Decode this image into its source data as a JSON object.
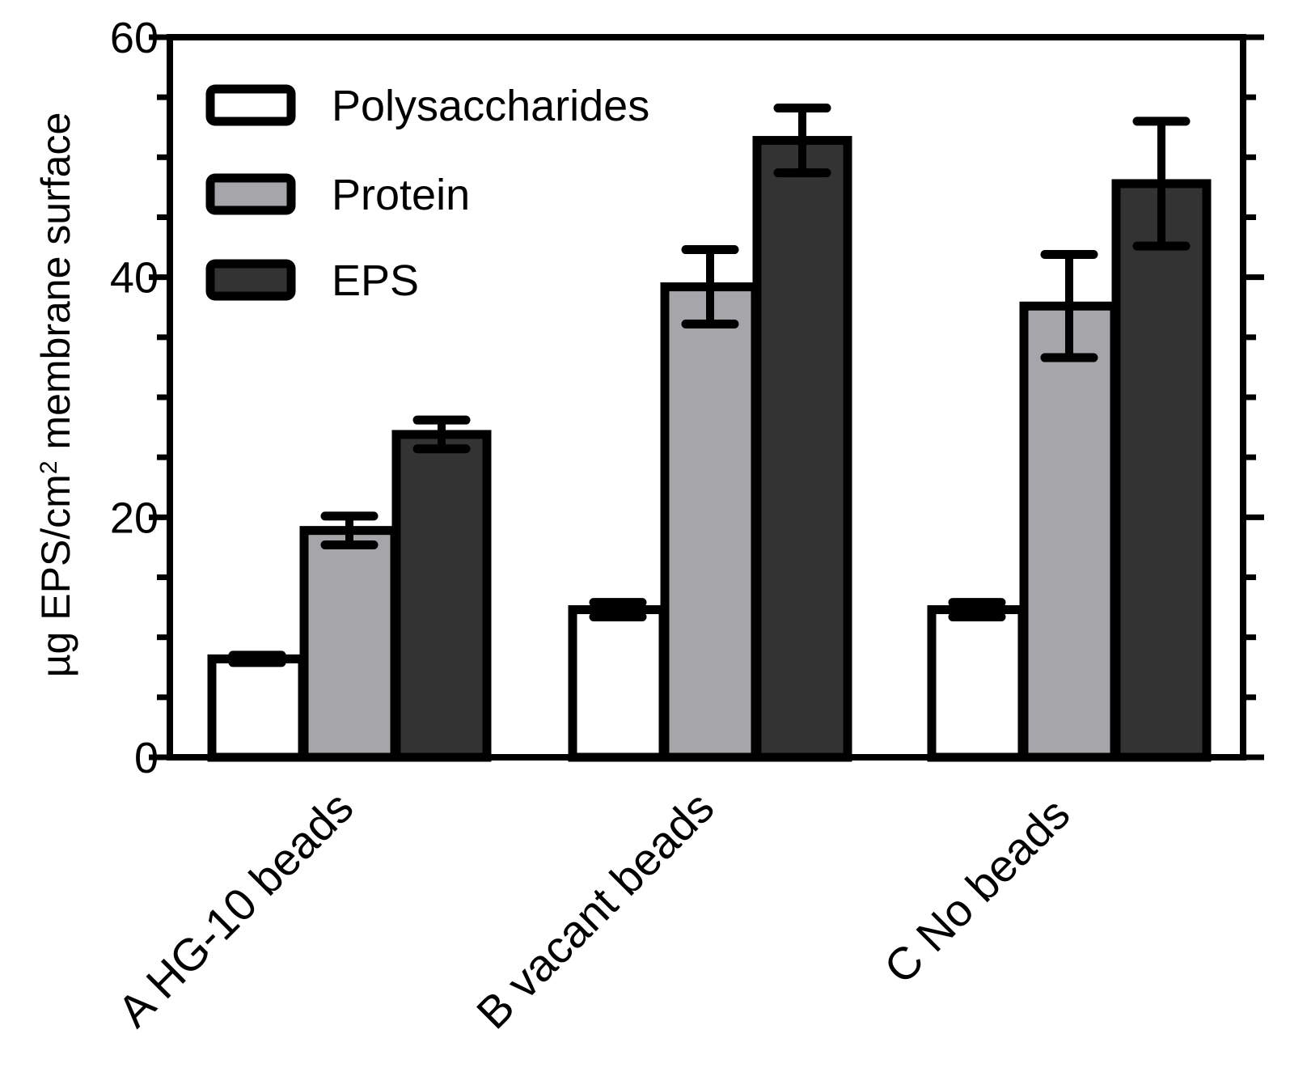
{
  "chart_data": {
    "type": "bar",
    "title": "",
    "xlabel": "",
    "ylabel": {
      "prefix": "µg EPS/cm",
      "superscript": "2",
      "suffix": " membrane surface"
    },
    "ylim": [
      0,
      60
    ],
    "yticks": [
      0,
      20,
      40,
      60
    ],
    "ytick_labels": [
      "0",
      "20",
      "40",
      "60"
    ],
    "yminor_step": 5,
    "grid": false,
    "legend_position": "top-left",
    "categories": [
      "A HG-10 beads",
      "B vacant beads",
      "C No beads"
    ],
    "series": [
      {
        "name": "Polysaccharides",
        "color": "#ffffff",
        "values": [
          8.2,
          12.3,
          12.3
        ],
        "errors": [
          0.3,
          0.6,
          0.6
        ]
      },
      {
        "name": "Protein",
        "color": "#a6a6aa",
        "values": [
          18.9,
          39.2,
          37.6
        ],
        "errors": [
          1.2,
          3.1,
          4.3
        ]
      },
      {
        "name": "EPS",
        "color": "#333333",
        "values": [
          26.9,
          51.4,
          47.8
        ],
        "errors": [
          1.2,
          2.7,
          5.2
        ]
      }
    ]
  }
}
